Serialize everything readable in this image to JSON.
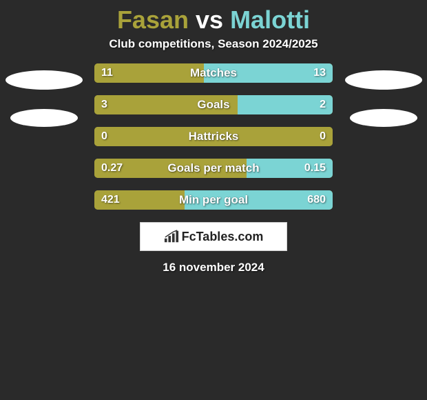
{
  "title": {
    "player1": "Fasan",
    "vs": "vs",
    "player2": "Malotti",
    "player1_color": "#a9a23a",
    "vs_color": "#ffffff",
    "player2_color": "#7bd4d4"
  },
  "subtitle": "Club competitions, Season 2024/2025",
  "colors": {
    "background": "#2a2a2a",
    "player1_bar": "#a9a23a",
    "player2_bar": "#7bd4d4",
    "text_light": "#ffffff"
  },
  "bars": [
    {
      "label": "Matches",
      "left_value": "11",
      "right_value": "13",
      "left_pct": 46,
      "right_pct": 54,
      "left_color": "#a9a23a",
      "right_color": "#7bd4d4"
    },
    {
      "label": "Goals",
      "left_value": "3",
      "right_value": "2",
      "left_pct": 60,
      "right_pct": 40,
      "left_color": "#a9a23a",
      "right_color": "#7bd4d4"
    },
    {
      "label": "Hattricks",
      "left_value": "0",
      "right_value": "0",
      "left_pct": 100,
      "right_pct": 0,
      "left_color": "#a9a23a",
      "right_color": "#7bd4d4"
    },
    {
      "label": "Goals per match",
      "left_value": "0.27",
      "right_value": "0.15",
      "left_pct": 64,
      "right_pct": 36,
      "left_color": "#a9a23a",
      "right_color": "#7bd4d4"
    },
    {
      "label": "Min per goal",
      "left_value": "421",
      "right_value": "680",
      "left_pct": 38,
      "right_pct": 62,
      "left_color": "#a9a23a",
      "right_color": "#7bd4d4"
    }
  ],
  "brand": {
    "icon_name": "bar-chart-icon",
    "text": "FcTables.com"
  },
  "date": "16 november 2024"
}
